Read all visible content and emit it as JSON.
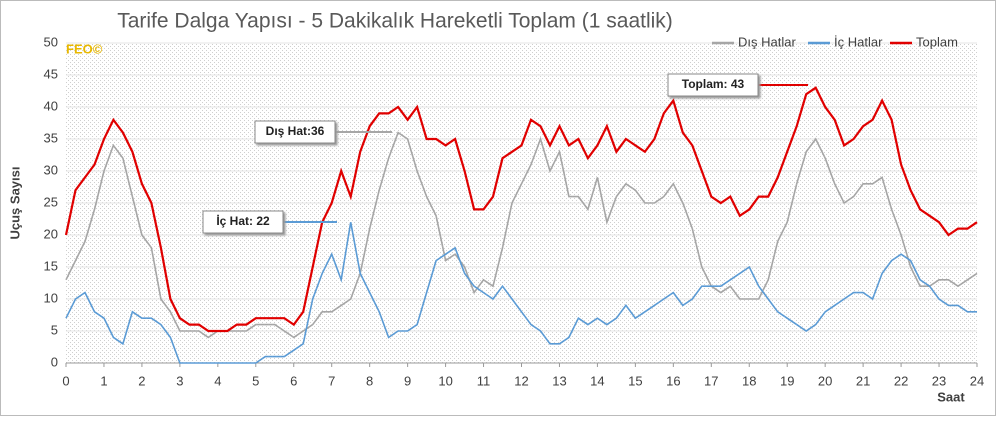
{
  "chart_data": {
    "type": "line",
    "title": "Tarife Dalga Yapısı - 5 Dakikalık Hareketli Toplam (1 saatlik)",
    "watermark": "FEO©",
    "ylabel": "Uçuş Sayısı",
    "xlabel": "Saat",
    "xlim": [
      0,
      24
    ],
    "xticks": [
      0,
      1,
      2,
      3,
      4,
      5,
      6,
      7,
      8,
      9,
      10,
      11,
      12,
      13,
      14,
      15,
      16,
      17,
      18,
      19,
      20,
      21,
      22,
      23,
      24
    ],
    "ylim": [
      0,
      50
    ],
    "yticks": [
      0,
      5,
      10,
      15,
      20,
      25,
      30,
      35,
      40,
      45,
      50
    ],
    "grid": true,
    "legend": "top-right",
    "x": [
      0,
      0.25,
      0.5,
      0.75,
      1,
      1.25,
      1.5,
      1.75,
      2,
      2.25,
      2.5,
      2.75,
      3,
      3.25,
      3.5,
      3.75,
      4,
      4.25,
      4.5,
      4.75,
      5,
      5.25,
      5.5,
      5.75,
      6,
      6.25,
      6.5,
      6.75,
      7,
      7.25,
      7.5,
      7.75,
      8,
      8.25,
      8.5,
      8.75,
      9,
      9.25,
      9.5,
      9.75,
      10,
      10.25,
      10.5,
      10.75,
      11,
      11.25,
      11.5,
      11.75,
      12,
      12.25,
      12.5,
      12.75,
      13,
      13.25,
      13.5,
      13.75,
      14,
      14.25,
      14.5,
      14.75,
      15,
      15.25,
      15.5,
      15.75,
      16,
      16.25,
      16.5,
      16.75,
      17,
      17.25,
      17.5,
      17.75,
      18,
      18.25,
      18.5,
      18.75,
      19,
      19.25,
      19.5,
      19.75,
      20,
      20.25,
      20.5,
      20.75,
      21,
      21.25,
      21.5,
      21.75,
      22,
      22.25,
      22.5,
      22.75,
      23,
      23.25,
      23.5,
      23.75,
      24
    ],
    "series": [
      {
        "name": "Dış Hatlar",
        "color": "#a6a6a6",
        "values": [
          13,
          16,
          19,
          24,
          30,
          34,
          32,
          26,
          20,
          18,
          10,
          8,
          5,
          5,
          5,
          4,
          5,
          5,
          5,
          5,
          6,
          6,
          6,
          5,
          4,
          5,
          6,
          8,
          8,
          9,
          10,
          14,
          21,
          27,
          32,
          36,
          35,
          30,
          26,
          23,
          16,
          17,
          15,
          11,
          13,
          12,
          18,
          25,
          28,
          31,
          35,
          30,
          33,
          26,
          26,
          24,
          29,
          22,
          26,
          28,
          27,
          25,
          25,
          26,
          28,
          25,
          21,
          15,
          12,
          11,
          12,
          10,
          10,
          10,
          13,
          19,
          22,
          28,
          33,
          35,
          32,
          28,
          25,
          26,
          28,
          28,
          29,
          24,
          20,
          15,
          12,
          12,
          13,
          13,
          12,
          13,
          14
        ]
      },
      {
        "name": "İç Hatlar",
        "color": "#5b9bd5",
        "values": [
          7,
          10,
          11,
          8,
          7,
          4,
          3,
          8,
          7,
          7,
          6,
          4,
          0,
          0,
          0,
          0,
          0,
          0,
          0,
          0,
          0,
          1,
          1,
          1,
          2,
          3,
          10,
          14,
          17,
          13,
          22,
          14,
          11,
          8,
          4,
          5,
          5,
          6,
          11,
          16,
          17,
          18,
          14,
          12,
          11,
          10,
          12,
          10,
          8,
          6,
          5,
          3,
          3,
          4,
          7,
          6,
          7,
          6,
          7,
          9,
          7,
          8,
          9,
          10,
          11,
          9,
          10,
          12,
          12,
          12,
          13,
          14,
          15,
          12,
          10,
          8,
          7,
          6,
          5,
          6,
          8,
          9,
          10,
          11,
          11,
          10,
          14,
          16,
          17,
          16,
          13,
          12,
          10,
          9,
          9,
          8,
          8
        ]
      },
      {
        "name": "Toplam",
        "color": "#e00000",
        "values": [
          20,
          27,
          29,
          31,
          35,
          38,
          36,
          33,
          28,
          25,
          18,
          10,
          7,
          6,
          6,
          5,
          5,
          5,
          6,
          6,
          7,
          7,
          7,
          7,
          6,
          8,
          15,
          22,
          25,
          30,
          26,
          33,
          37,
          39,
          39,
          40,
          38,
          40,
          35,
          35,
          34,
          35,
          30,
          24,
          24,
          26,
          32,
          33,
          34,
          38,
          37,
          34,
          37,
          34,
          35,
          32,
          34,
          37,
          33,
          35,
          34,
          33,
          35,
          39,
          41,
          36,
          34,
          30,
          26,
          25,
          26,
          23,
          24,
          26,
          26,
          29,
          33,
          37,
          42,
          43,
          40,
          38,
          34,
          35,
          37,
          38,
          41,
          38,
          31,
          27,
          24,
          23,
          22,
          20,
          21,
          21,
          22
        ]
      }
    ],
    "annotations": [
      {
        "text": "Dış Hat:36"
      },
      {
        "text": "İç Hat: 22"
      },
      {
        "text": "Toplam: 43"
      }
    ]
  }
}
